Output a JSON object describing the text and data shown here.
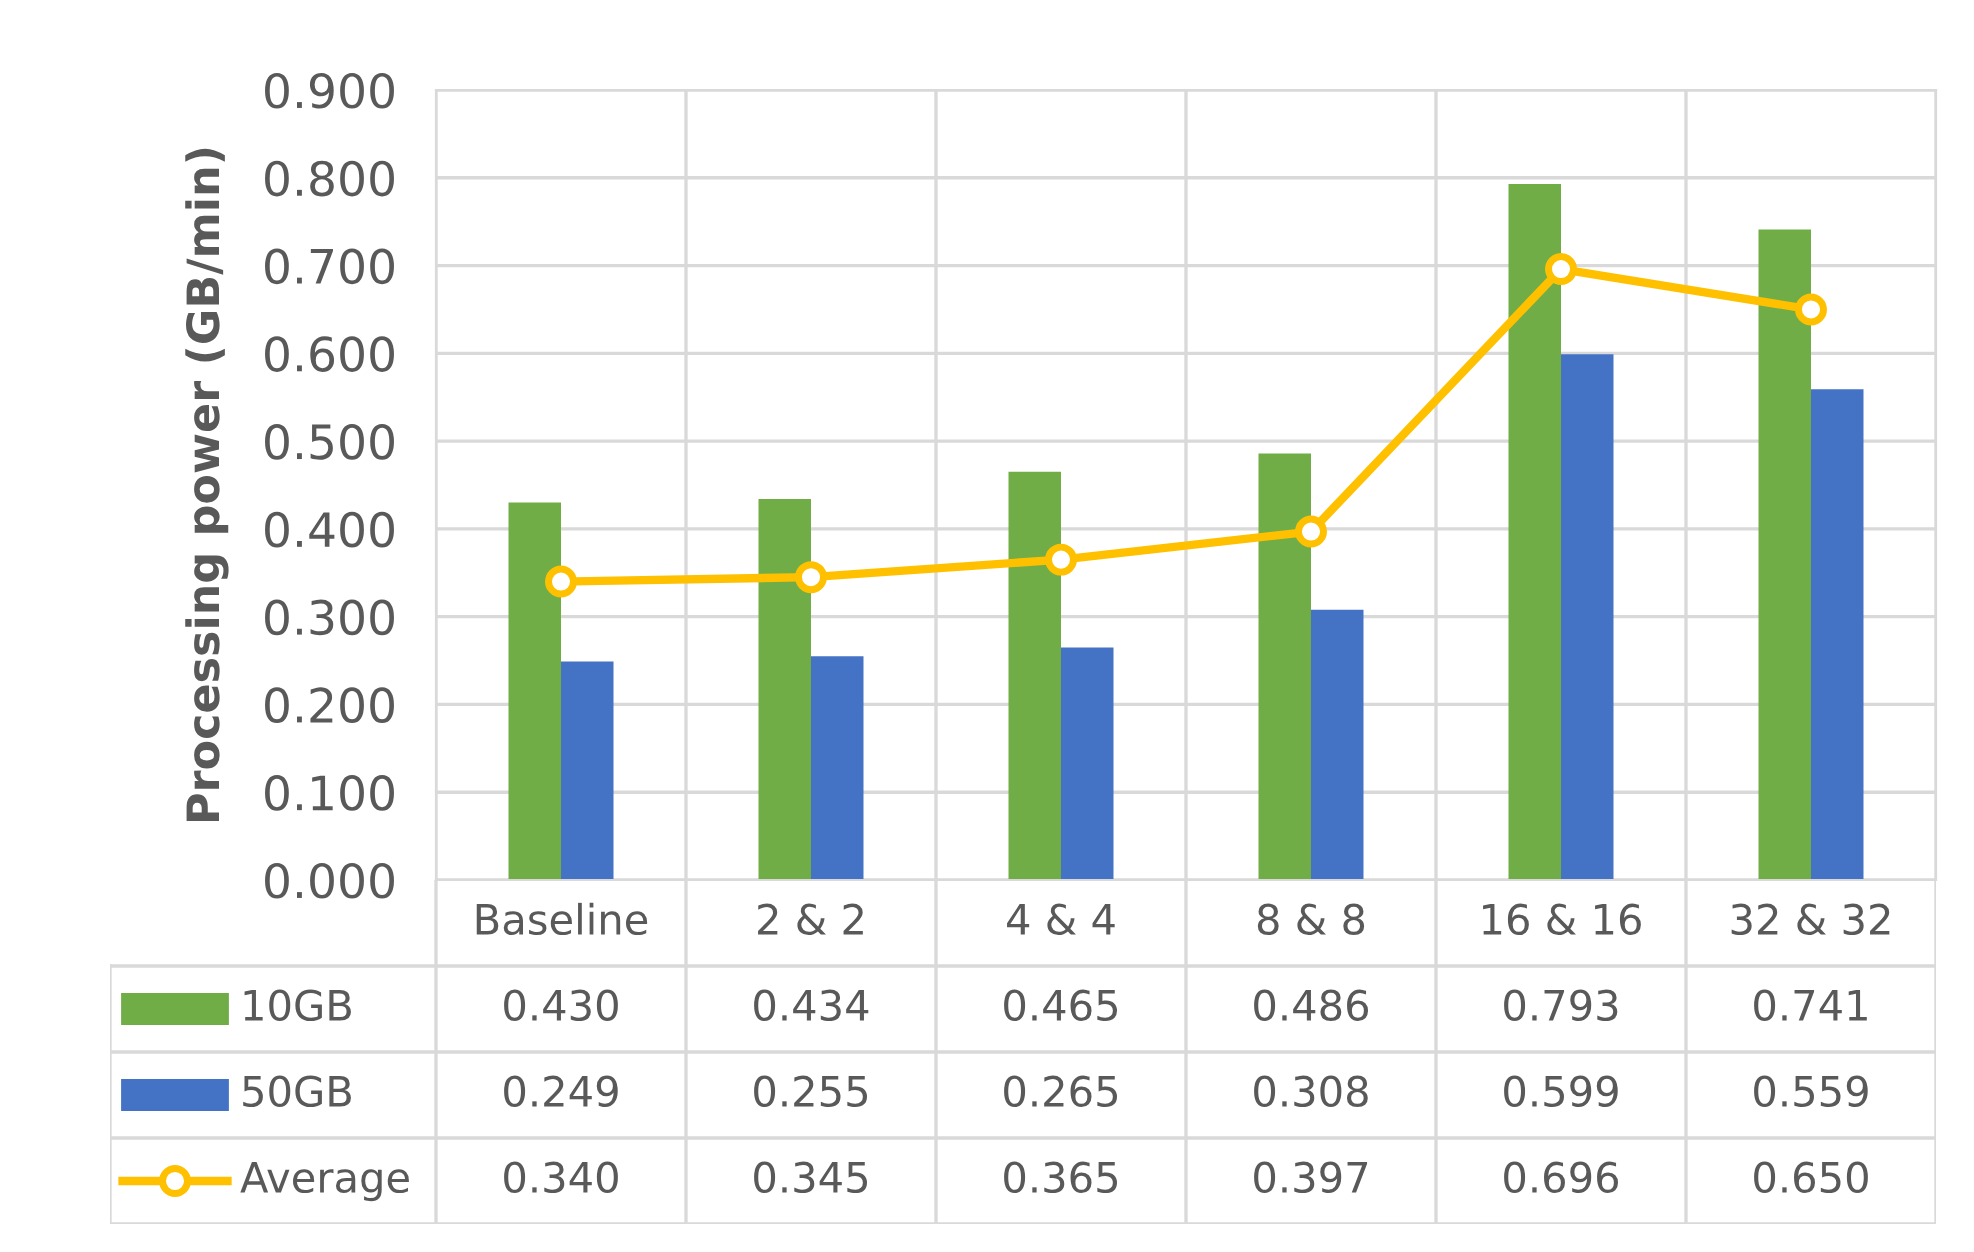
{
  "chart_data": {
    "type": "bar",
    "ylabel": "Processing power (GB/min)",
    "categories": [
      "Baseline",
      "2 & 2",
      "4 & 4",
      "8 & 8",
      "16 & 16",
      "32 & 32"
    ],
    "series": [
      {
        "name": "10GB",
        "color": "#70ad47",
        "values": [
          0.43,
          0.434,
          0.465,
          0.486,
          0.793,
          0.741
        ],
        "value_labels": [
          "0.430",
          "0.434",
          "0.465",
          "0.486",
          "0.793",
          "0.741"
        ]
      },
      {
        "name": "50GB",
        "color": "#4472c4",
        "values": [
          0.249,
          0.255,
          0.265,
          0.308,
          0.599,
          0.559
        ],
        "value_labels": [
          "0.249",
          "0.255",
          "0.265",
          "0.308",
          "0.599",
          "0.559"
        ]
      },
      {
        "name": "Average",
        "type": "line",
        "color": "#ffc000",
        "marker": "circle",
        "values": [
          0.34,
          0.345,
          0.365,
          0.397,
          0.696,
          0.65
        ],
        "value_labels": [
          "0.340",
          "0.345",
          "0.365",
          "0.397",
          "0.696",
          "0.650"
        ]
      }
    ],
    "ylim": [
      0,
      0.9
    ],
    "yticks": [
      {
        "value": 0,
        "label": "0.000"
      },
      {
        "value": 0.1,
        "label": "0.100"
      },
      {
        "value": 0.2,
        "label": "0.200"
      },
      {
        "value": 0.3,
        "label": "0.300"
      },
      {
        "value": 0.4,
        "label": "0.400"
      },
      {
        "value": 0.5,
        "label": "0.500"
      },
      {
        "value": 0.6,
        "label": "0.600"
      },
      {
        "value": 0.7,
        "label": "0.700"
      },
      {
        "value": 0.8,
        "label": "0.800"
      },
      {
        "value": 0.9,
        "label": "0.900"
      }
    ],
    "grid": true,
    "legend": "bottom"
  }
}
